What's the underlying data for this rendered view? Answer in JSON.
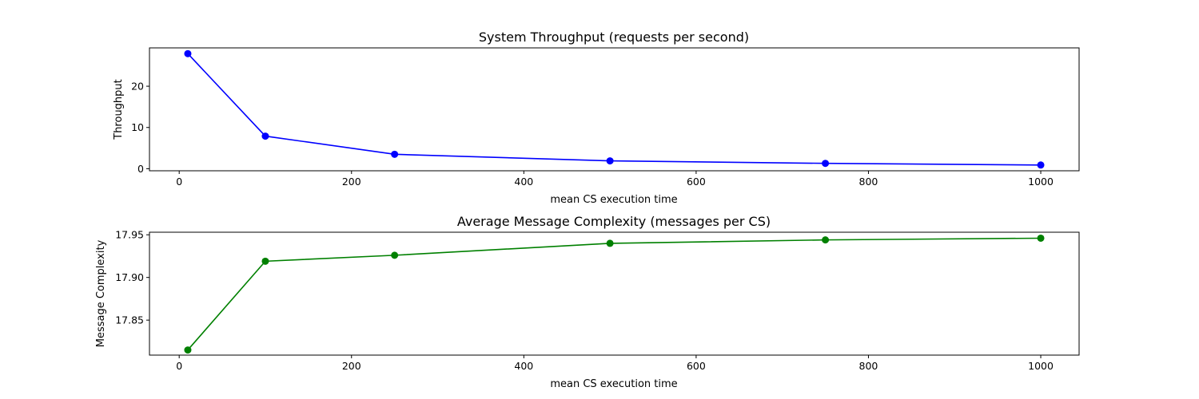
{
  "chart_data": [
    {
      "type": "line",
      "title": "System Throughput (requests per second)",
      "xlabel": "mean CS execution time",
      "ylabel": "Throughput",
      "x": [
        10,
        100,
        250,
        500,
        750,
        1000
      ],
      "series": [
        {
          "values": [
            27.9,
            7.9,
            3.5,
            1.9,
            1.3,
            0.9
          ],
          "color": "#0000ff",
          "marker": "circle"
        }
      ],
      "xlim": [
        -34.5,
        1044.5
      ],
      "ylim": [
        -0.5,
        29.3
      ],
      "xticks": [
        0,
        200,
        400,
        600,
        800,
        1000
      ],
      "xtick_labels": [
        "0",
        "200",
        "400",
        "600",
        "800",
        "1000"
      ],
      "yticks": [
        0,
        10,
        20
      ],
      "ytick_labels": [
        "0",
        "10",
        "20"
      ],
      "grid": false,
      "legend": "none"
    },
    {
      "type": "line",
      "title": "Average Message Complexity (messages per CS)",
      "xlabel": "mean CS execution time",
      "ylabel": "Message Complexity",
      "x": [
        10,
        100,
        250,
        500,
        750,
        1000
      ],
      "series": [
        {
          "values": [
            17.815,
            17.919,
            17.926,
            17.94,
            17.944,
            17.946
          ],
          "color": "#008000",
          "marker": "circle"
        }
      ],
      "xlim": [
        -34.5,
        1044.5
      ],
      "ylim": [
        17.809,
        17.953
      ],
      "xticks": [
        0,
        200,
        400,
        600,
        800,
        1000
      ],
      "xtick_labels": [
        "0",
        "200",
        "400",
        "600",
        "800",
        "1000"
      ],
      "yticks": [
        17.85,
        17.9,
        17.95
      ],
      "ytick_labels": [
        "17.85",
        "17.90",
        "17.95"
      ],
      "grid": false,
      "legend": "none"
    }
  ]
}
